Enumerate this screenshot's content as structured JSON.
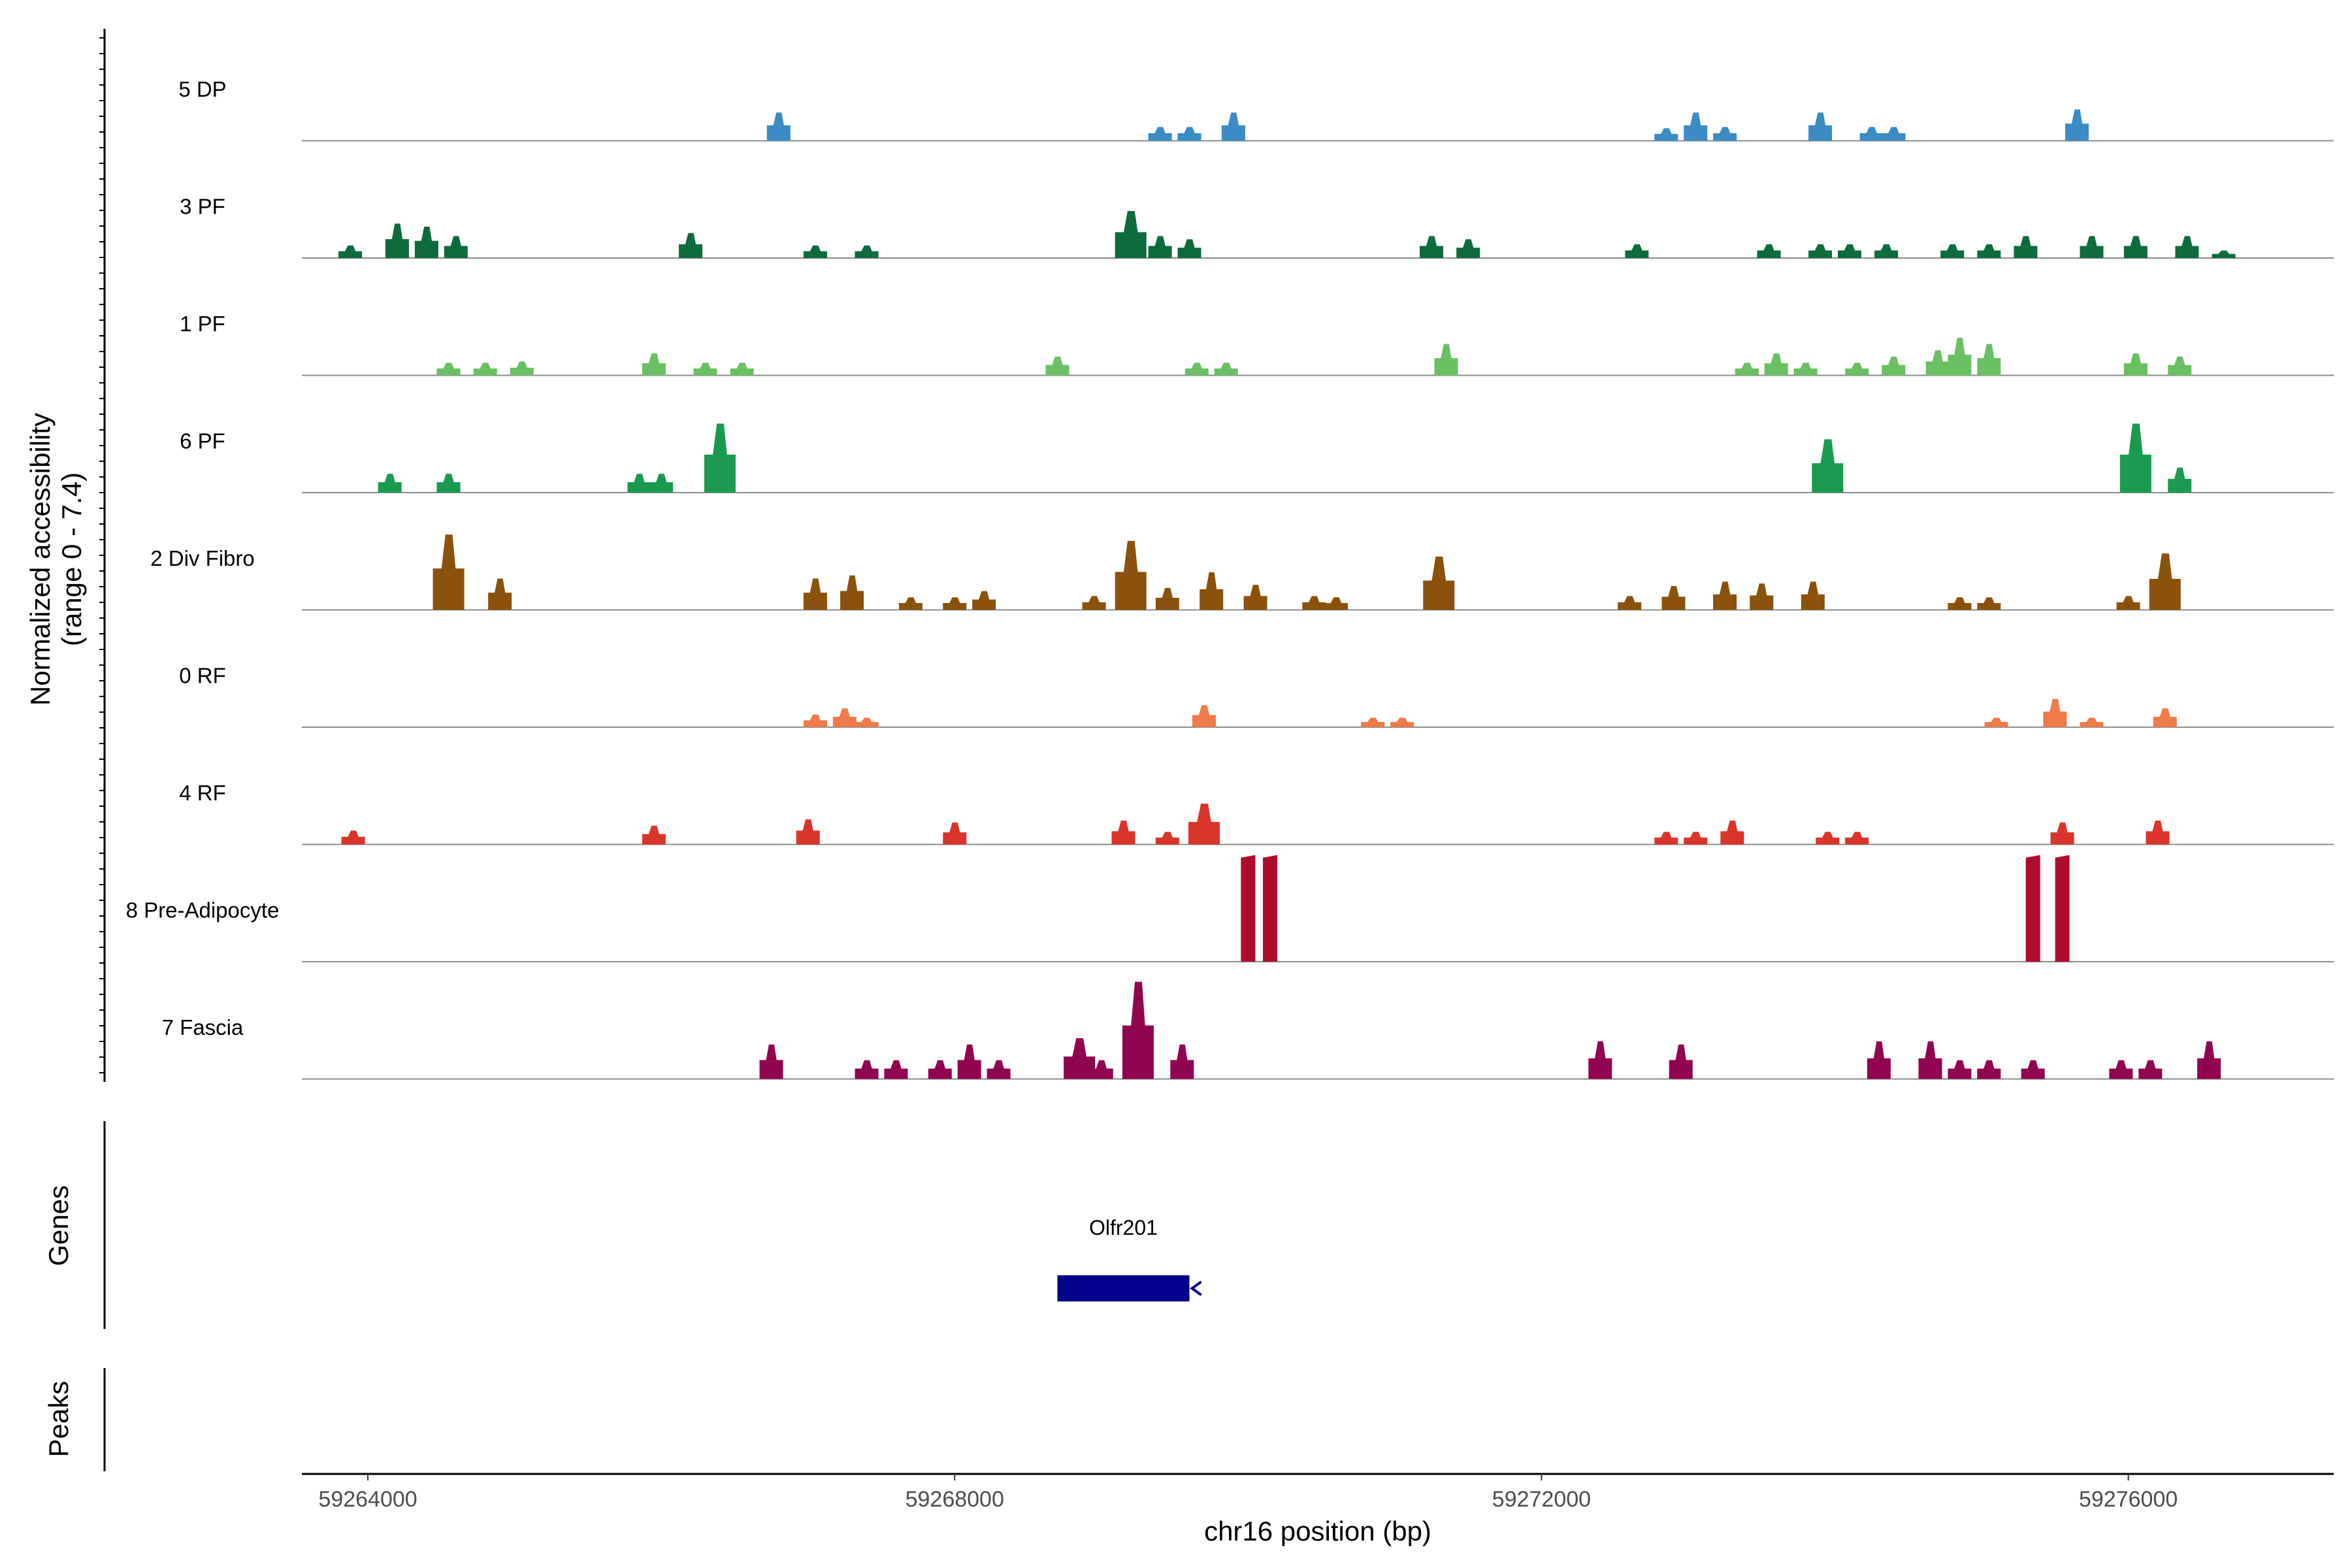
{
  "chart_data": {
    "type": "area",
    "title": "",
    "ylabel_line1": "Normalized accessibility",
    "ylabel_line2": "(range 0 - 7.4)",
    "y_range": [
      0,
      7.4
    ],
    "xlabel": "chr16 position (bp)",
    "xlim": [
      59263550,
      59277400
    ],
    "xticks": [
      59264000,
      59268000,
      59272000,
      59276000
    ],
    "xtick_labels": [
      "59264000",
      "59268000",
      "59272000",
      "59276000"
    ],
    "tracks": [
      {
        "name": "5 DP",
        "color": "#3b8cc4",
        "peaks": [
          [
            59266800,
            0.45
          ],
          [
            59269400,
            0.22
          ],
          [
            59269600,
            0.22
          ],
          [
            59269900,
            0.45
          ],
          [
            59272850,
            0.2
          ],
          [
            59273050,
            0.45
          ],
          [
            59273250,
            0.22
          ],
          [
            59273900,
            0.45
          ],
          [
            59274250,
            0.22
          ],
          [
            59274400,
            0.22
          ],
          [
            59275650,
            0.5
          ]
        ]
      },
      {
        "name": "3 PF",
        "color": "#0d6b3c",
        "peaks": [
          [
            59263880,
            0.2
          ],
          [
            59264200,
            0.55
          ],
          [
            59264400,
            0.5
          ],
          [
            59264600,
            0.35
          ],
          [
            59266200,
            0.4
          ],
          [
            59267050,
            0.2
          ],
          [
            59267400,
            0.2
          ],
          [
            59269200,
            0.75
          ],
          [
            59269400,
            0.35
          ],
          [
            59269600,
            0.3
          ],
          [
            59271250,
            0.35
          ],
          [
            59271500,
            0.3
          ],
          [
            59272650,
            0.22
          ],
          [
            59273550,
            0.22
          ],
          [
            59273900,
            0.22
          ],
          [
            59274100,
            0.22
          ],
          [
            59274350,
            0.22
          ],
          [
            59274800,
            0.22
          ],
          [
            59275050,
            0.22
          ],
          [
            59275300,
            0.35
          ],
          [
            59275750,
            0.35
          ],
          [
            59276050,
            0.35
          ],
          [
            59276400,
            0.35
          ],
          [
            59276650,
            0.12
          ]
        ]
      },
      {
        "name": "1 PF",
        "color": "#6bbf63",
        "peaks": [
          [
            59264550,
            0.2
          ],
          [
            59264800,
            0.2
          ],
          [
            59265050,
            0.22
          ],
          [
            59265950,
            0.35
          ],
          [
            59266300,
            0.2
          ],
          [
            59266550,
            0.2
          ],
          [
            59268700,
            0.3
          ],
          [
            59269650,
            0.2
          ],
          [
            59269850,
            0.2
          ],
          [
            59271350,
            0.5
          ],
          [
            59273400,
            0.2
          ],
          [
            59273600,
            0.35
          ],
          [
            59273800,
            0.2
          ],
          [
            59274150,
            0.2
          ],
          [
            59274400,
            0.3
          ],
          [
            59274700,
            0.4
          ],
          [
            59274850,
            0.6
          ],
          [
            59275050,
            0.5
          ],
          [
            59276050,
            0.35
          ],
          [
            59276350,
            0.3
          ]
        ]
      },
      {
        "name": "6 PF",
        "color": "#1a9a4f",
        "peaks": [
          [
            59264150,
            0.3
          ],
          [
            59264550,
            0.3
          ],
          [
            59265850,
            0.3
          ],
          [
            59266000,
            0.3
          ],
          [
            59266400,
            1.1
          ],
          [
            59273950,
            0.85
          ],
          [
            59276050,
            1.1
          ],
          [
            59276350,
            0.4
          ]
        ]
      },
      {
        "name": "2 Div Fibro",
        "color": "#8a520d",
        "peaks": [
          [
            59264550,
            1.2
          ],
          [
            59264900,
            0.5
          ],
          [
            59267050,
            0.5
          ],
          [
            59267300,
            0.55
          ],
          [
            59267700,
            0.2
          ],
          [
            59268000,
            0.2
          ],
          [
            59268200,
            0.3
          ],
          [
            59268950,
            0.22
          ],
          [
            59269200,
            1.1
          ],
          [
            59269450,
            0.35
          ],
          [
            59269750,
            0.6
          ],
          [
            59270050,
            0.4
          ],
          [
            59270450,
            0.22
          ],
          [
            59270600,
            0.2
          ],
          [
            59271300,
            0.85
          ],
          [
            59272600,
            0.22
          ],
          [
            59272900,
            0.38
          ],
          [
            59273250,
            0.45
          ],
          [
            59273500,
            0.42
          ],
          [
            59273850,
            0.45
          ],
          [
            59274850,
            0.2
          ],
          [
            59275050,
            0.2
          ],
          [
            59276000,
            0.22
          ],
          [
            59276250,
            0.9
          ]
        ]
      },
      {
        "name": "0 RF",
        "color": "#ef7a4a",
        "peaks": [
          [
            59267050,
            0.2
          ],
          [
            59267250,
            0.3
          ],
          [
            59267400,
            0.15
          ],
          [
            59269700,
            0.35
          ],
          [
            59270850,
            0.15
          ],
          [
            59271050,
            0.15
          ],
          [
            59275100,
            0.15
          ],
          [
            59275500,
            0.45
          ],
          [
            59275750,
            0.15
          ],
          [
            59276250,
            0.3
          ]
        ]
      },
      {
        "name": "4 RF",
        "color": "#d9352a",
        "peaks": [
          [
            59263900,
            0.22
          ],
          [
            59265950,
            0.3
          ],
          [
            59267000,
            0.4
          ],
          [
            59268000,
            0.35
          ],
          [
            59269150,
            0.38
          ],
          [
            59269450,
            0.2
          ],
          [
            59269700,
            0.65
          ],
          [
            59272850,
            0.2
          ],
          [
            59273050,
            0.2
          ],
          [
            59273300,
            0.38
          ],
          [
            59273950,
            0.2
          ],
          [
            59274150,
            0.2
          ],
          [
            59275550,
            0.35
          ],
          [
            59276200,
            0.38
          ]
        ]
      },
      {
        "name": "8 Pre-Adipocyte",
        "color": "#b00d2e",
        "peaks": [
          [
            59270000,
            1.7
          ],
          [
            59270150,
            1.7
          ],
          [
            59275350,
            1.7
          ],
          [
            59275550,
            1.7
          ]
        ]
      },
      {
        "name": "7 Fascia",
        "color": "#91044f",
        "peaks": [
          [
            59266750,
            0.55
          ],
          [
            59267400,
            0.3
          ],
          [
            59267600,
            0.3
          ],
          [
            59267900,
            0.3
          ],
          [
            59268100,
            0.55
          ],
          [
            59268300,
            0.3
          ],
          [
            59268850,
            0.65
          ],
          [
            59269000,
            0.3
          ],
          [
            59269250,
            1.55
          ],
          [
            59269550,
            0.55
          ],
          [
            59272400,
            0.6
          ],
          [
            59272950,
            0.55
          ],
          [
            59274300,
            0.6
          ],
          [
            59274650,
            0.6
          ],
          [
            59274850,
            0.3
          ],
          [
            59275050,
            0.3
          ],
          [
            59275350,
            0.3
          ],
          [
            59275950,
            0.3
          ],
          [
            59276150,
            0.3
          ],
          [
            59276550,
            0.6
          ]
        ]
      }
    ],
    "genes_label": "Genes",
    "peaks_label": "Peaks",
    "genes": [
      {
        "name": "Olfr201",
        "start": 59268700,
        "end": 59269600,
        "strand": "-",
        "color": "#00008b"
      }
    ]
  }
}
